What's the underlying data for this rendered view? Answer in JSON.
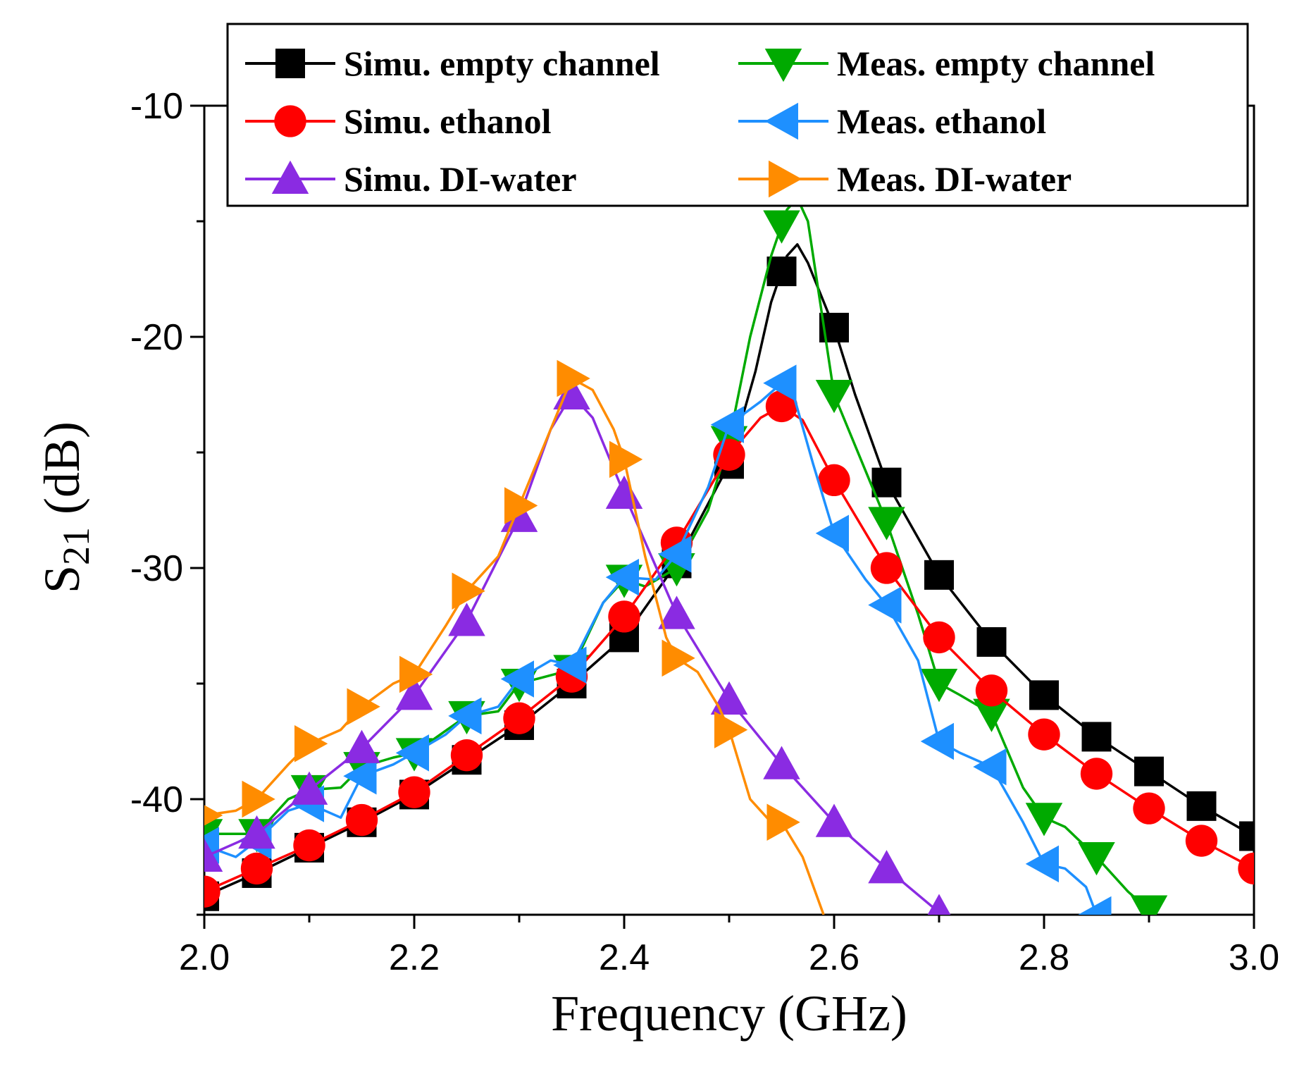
{
  "chart_data": {
    "type": "line",
    "xlabel": "Frequency (GHz)",
    "ylabel": "S21 (dB)",
    "ylabel_main": "S",
    "ylabel_sub": "21",
    "ylabel_unit": " (dB)",
    "xlim": [
      2.0,
      3.0
    ],
    "ylim": [
      -45,
      -10
    ],
    "xticks": [
      2.0,
      2.2,
      2.4,
      2.6,
      2.8,
      3.0
    ],
    "xtick_labels": [
      "2.0",
      "2.2",
      "2.4",
      "2.6",
      "2.8",
      "3.0"
    ],
    "yticks": [
      -10,
      -20,
      -30,
      -40
    ],
    "ytick_labels": [
      "-10",
      "-20",
      "-30",
      "-40"
    ],
    "grid": false,
    "legend_position": "top",
    "series": [
      {
        "name": "Simu. empty channel",
        "color": "#000000",
        "marker": "square",
        "x": [
          2.0,
          2.05,
          2.1,
          2.15,
          2.2,
          2.25,
          2.3,
          2.35,
          2.4,
          2.45,
          2.5,
          2.525,
          2.54,
          2.555,
          2.565,
          2.575,
          2.6,
          2.62,
          2.65,
          2.7,
          2.75,
          2.8,
          2.85,
          2.9,
          2.95,
          3.0
        ],
        "y": [
          -44.2,
          -43.2,
          -42.1,
          -41.0,
          -39.8,
          -38.3,
          -36.8,
          -35.0,
          -33.0,
          -29.8,
          -25.5,
          -21.5,
          -18.5,
          -16.5,
          -16.0,
          -16.8,
          -19.6,
          -22.5,
          -26.3,
          -30.3,
          -33.2,
          -35.5,
          -37.3,
          -38.8,
          -40.3,
          -41.6
        ],
        "marker_x": [
          2.0,
          2.05,
          2.1,
          2.15,
          2.2,
          2.25,
          2.3,
          2.35,
          2.4,
          2.45,
          2.5,
          2.55,
          2.6,
          2.65,
          2.7,
          2.75,
          2.8,
          2.85,
          2.9,
          2.95,
          3.0
        ]
      },
      {
        "name": "Meas. empty channel",
        "color": "#00aa00",
        "marker": "triangle-down",
        "x": [
          2.0,
          2.05,
          2.08,
          2.1,
          2.13,
          2.15,
          2.18,
          2.2,
          2.25,
          2.28,
          2.3,
          2.35,
          2.38,
          2.4,
          2.42,
          2.45,
          2.48,
          2.5,
          2.52,
          2.54,
          2.555,
          2.565,
          2.575,
          2.6,
          2.65,
          2.68,
          2.7,
          2.72,
          2.75,
          2.78,
          2.8,
          2.82,
          2.85,
          2.88,
          2.9
        ],
        "y": [
          -41.5,
          -41.5,
          -40.0,
          -39.6,
          -39.5,
          -38.6,
          -38.2,
          -38.0,
          -36.4,
          -36.2,
          -35.0,
          -34.4,
          -31.5,
          -30.5,
          -30.8,
          -30.0,
          -27.5,
          -24.5,
          -20.0,
          -16.5,
          -14.5,
          -14.0,
          -15.0,
          -22.5,
          -28.0,
          -32.0,
          -35.0,
          -35.5,
          -36.3,
          -39.5,
          -40.8,
          -41.2,
          -42.5,
          -44.0,
          -44.8
        ],
        "marker_x": [
          2.0,
          2.05,
          2.1,
          2.15,
          2.2,
          2.25,
          2.3,
          2.35,
          2.4,
          2.45,
          2.5,
          2.55,
          2.6,
          2.65,
          2.7,
          2.75,
          2.8,
          2.85,
          2.9
        ]
      },
      {
        "name": "Simu. ethanol",
        "color": "#ff0000",
        "marker": "circle",
        "x": [
          2.0,
          2.05,
          2.1,
          2.15,
          2.2,
          2.25,
          2.3,
          2.35,
          2.4,
          2.45,
          2.5,
          2.53,
          2.55,
          2.57,
          2.6,
          2.65,
          2.7,
          2.75,
          2.8,
          2.85,
          2.9,
          2.95,
          3.0
        ],
        "y": [
          -44.0,
          -43.0,
          -42.0,
          -40.9,
          -39.7,
          -38.1,
          -36.5,
          -34.7,
          -32.1,
          -28.9,
          -25.1,
          -23.5,
          -23.0,
          -23.6,
          -26.2,
          -30.0,
          -33.0,
          -35.3,
          -37.2,
          -38.9,
          -40.4,
          -41.8,
          -43.0
        ],
        "marker_x": [
          2.0,
          2.05,
          2.1,
          2.15,
          2.2,
          2.25,
          2.3,
          2.35,
          2.4,
          2.45,
          2.5,
          2.55,
          2.6,
          2.65,
          2.7,
          2.75,
          2.8,
          2.85,
          2.9,
          2.95,
          3.0
        ]
      },
      {
        "name": "Meas. ethanol",
        "color": "#1e90ff",
        "marker": "triangle-left",
        "x": [
          2.0,
          2.03,
          2.05,
          2.08,
          2.1,
          2.13,
          2.15,
          2.18,
          2.2,
          2.23,
          2.25,
          2.28,
          2.3,
          2.33,
          2.35,
          2.38,
          2.4,
          2.43,
          2.45,
          2.48,
          2.5,
          2.53,
          2.55,
          2.56,
          2.58,
          2.6,
          2.63,
          2.65,
          2.68,
          2.7,
          2.72,
          2.75,
          2.78,
          2.8,
          2.82,
          2.84,
          2.85
        ],
        "y": [
          -42.0,
          -42.5,
          -41.8,
          -40.5,
          -40.2,
          -40.8,
          -39.0,
          -38.5,
          -38.0,
          -37.2,
          -36.4,
          -36.0,
          -34.8,
          -34.0,
          -34.2,
          -31.5,
          -30.4,
          -30.5,
          -29.4,
          -26.5,
          -23.8,
          -22.8,
          -22.0,
          -22.3,
          -25.5,
          -28.5,
          -30.5,
          -31.6,
          -34.0,
          -37.5,
          -38.0,
          -38.6,
          -41.0,
          -42.8,
          -43.0,
          -43.8,
          -45.0
        ],
        "marker_x": [
          2.0,
          2.05,
          2.1,
          2.15,
          2.2,
          2.25,
          2.3,
          2.35,
          2.4,
          2.45,
          2.5,
          2.55,
          2.6,
          2.65,
          2.7,
          2.75,
          2.8,
          2.85
        ]
      },
      {
        "name": "Simu. DI-water",
        "color": "#8a2be2",
        "marker": "triangle-up",
        "x": [
          2.0,
          2.05,
          2.1,
          2.15,
          2.2,
          2.25,
          2.3,
          2.33,
          2.35,
          2.37,
          2.4,
          2.45,
          2.5,
          2.55,
          2.6,
          2.65,
          2.7
        ],
        "y": [
          -42.5,
          -41.5,
          -39.6,
          -37.8,
          -35.5,
          -32.3,
          -27.8,
          -24.0,
          -22.5,
          -23.5,
          -26.8,
          -32.0,
          -35.7,
          -38.5,
          -41.0,
          -43.0,
          -44.9
        ],
        "marker_x": [
          2.0,
          2.05,
          2.1,
          2.15,
          2.2,
          2.25,
          2.3,
          2.35,
          2.4,
          2.45,
          2.5,
          2.55,
          2.6,
          2.65,
          2.7
        ]
      },
      {
        "name": "Meas. DI-water",
        "color": "#ff8c00",
        "marker": "triangle-right",
        "x": [
          2.0,
          2.03,
          2.05,
          2.08,
          2.1,
          2.13,
          2.15,
          2.18,
          2.2,
          2.23,
          2.25,
          2.28,
          2.3,
          2.33,
          2.35,
          2.37,
          2.39,
          2.4,
          2.42,
          2.44,
          2.45,
          2.47,
          2.49,
          2.5,
          2.52,
          2.54,
          2.55,
          2.57,
          2.59
        ],
        "y": [
          -40.7,
          -40.5,
          -40.0,
          -38.5,
          -37.6,
          -37.0,
          -36.0,
          -35.0,
          -34.6,
          -32.5,
          -31.0,
          -29.5,
          -27.3,
          -24.0,
          -21.8,
          -22.3,
          -24.0,
          -25.3,
          -29.5,
          -33.0,
          -33.9,
          -34.5,
          -36.0,
          -37.0,
          -40.0,
          -41.0,
          -41.0,
          -42.5,
          -45.0
        ],
        "marker_x": [
          2.0,
          2.05,
          2.1,
          2.15,
          2.2,
          2.25,
          2.3,
          2.35,
          2.4,
          2.45,
          2.5,
          2.55
        ]
      }
    ]
  }
}
